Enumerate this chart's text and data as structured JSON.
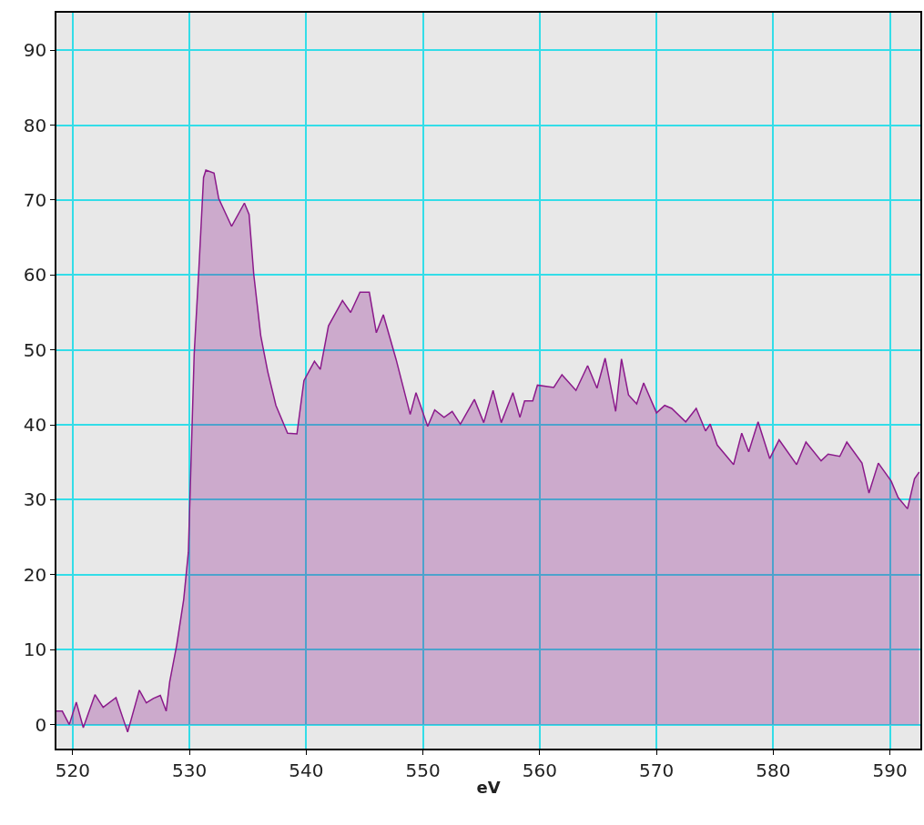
{
  "chart_data": {
    "type": "area",
    "xlabel": "eV",
    "xlim": [
      518.6,
      592.6
    ],
    "ylim": [
      -3.2,
      95
    ],
    "xticks": [
      520,
      530,
      540,
      550,
      560,
      570,
      580,
      590
    ],
    "yticks": [
      0,
      10,
      20,
      30,
      40,
      50,
      60,
      70,
      80,
      90
    ],
    "grid": true,
    "legend": false,
    "marker": "none",
    "line_style": "solid",
    "series": [
      {
        "color": "#8b1a8b",
        "x": [
          518.6,
          519.1,
          519.7,
          520.3,
          520.9,
          521.9,
          522.6,
          523.7,
          524.7,
          525.7,
          526.3,
          526.9,
          527.5,
          528.0,
          528.3,
          528.9,
          529.5,
          529.9,
          530.4,
          530.8,
          531.2,
          531.4,
          532.1,
          532.5,
          533.6,
          534.7,
          535.1,
          535.5,
          536.1,
          536.7,
          537.4,
          538.4,
          539.2,
          539.8,
          540.7,
          541.2,
          541.9,
          543.1,
          543.8,
          544.6,
          545.4,
          546.0,
          546.6,
          547.7,
          548.9,
          549.4,
          550.4,
          551.0,
          551.8,
          552.5,
          553.2,
          554.4,
          555.2,
          556.0,
          556.7,
          557.7,
          558.3,
          558.7,
          559.4,
          559.8,
          561.2,
          561.9,
          563.1,
          564.1,
          564.9,
          565.6,
          566.5,
          567.0,
          567.6,
          568.3,
          568.9,
          570.0,
          570.7,
          571.3,
          572.5,
          573.4,
          574.2,
          574.6,
          575.2,
          576.6,
          577.3,
          577.9,
          578.7,
          579.7,
          580.5,
          582.0,
          582.8,
          584.1,
          584.7,
          585.7,
          586.3,
          587.6,
          588.2,
          589.0,
          590.1,
          590.7,
          591.5,
          592.1,
          592.5
        ],
        "values": [
          1.8,
          1.8,
          0,
          3,
          -0.4,
          4,
          2.3,
          3.6,
          -1,
          4.6,
          2.9,
          3.5,
          3.9,
          1.8,
          5.7,
          10.6,
          16.7,
          23,
          49.5,
          60.8,
          73,
          74,
          73.6,
          70.2,
          66.5,
          69.6,
          68.1,
          60.1,
          51.9,
          47.1,
          42.6,
          38.9,
          38.8,
          45.9,
          48.5,
          47.4,
          53.2,
          56.6,
          55,
          57.7,
          57.7,
          52.3,
          54.7,
          48.7,
          41.4,
          44.3,
          39.8,
          42,
          41,
          41.8,
          40.1,
          43.4,
          40.3,
          44.6,
          40.3,
          44.3,
          41,
          43.2,
          43.2,
          45.3,
          45,
          46.7,
          44.6,
          47.9,
          44.9,
          48.9,
          41.8,
          48.8,
          44,
          42.8,
          45.6,
          41.6,
          42.6,
          42.2,
          40.4,
          42.2,
          39.2,
          40.1,
          37.3,
          34.7,
          38.9,
          36.4,
          40.4,
          35.5,
          38,
          34.7,
          37.7,
          35.2,
          36.1,
          35.8,
          37.7,
          34.9,
          30.9,
          34.9,
          32.5,
          30.3,
          28.8,
          32.8,
          33.7
        ]
      }
    ]
  }
}
